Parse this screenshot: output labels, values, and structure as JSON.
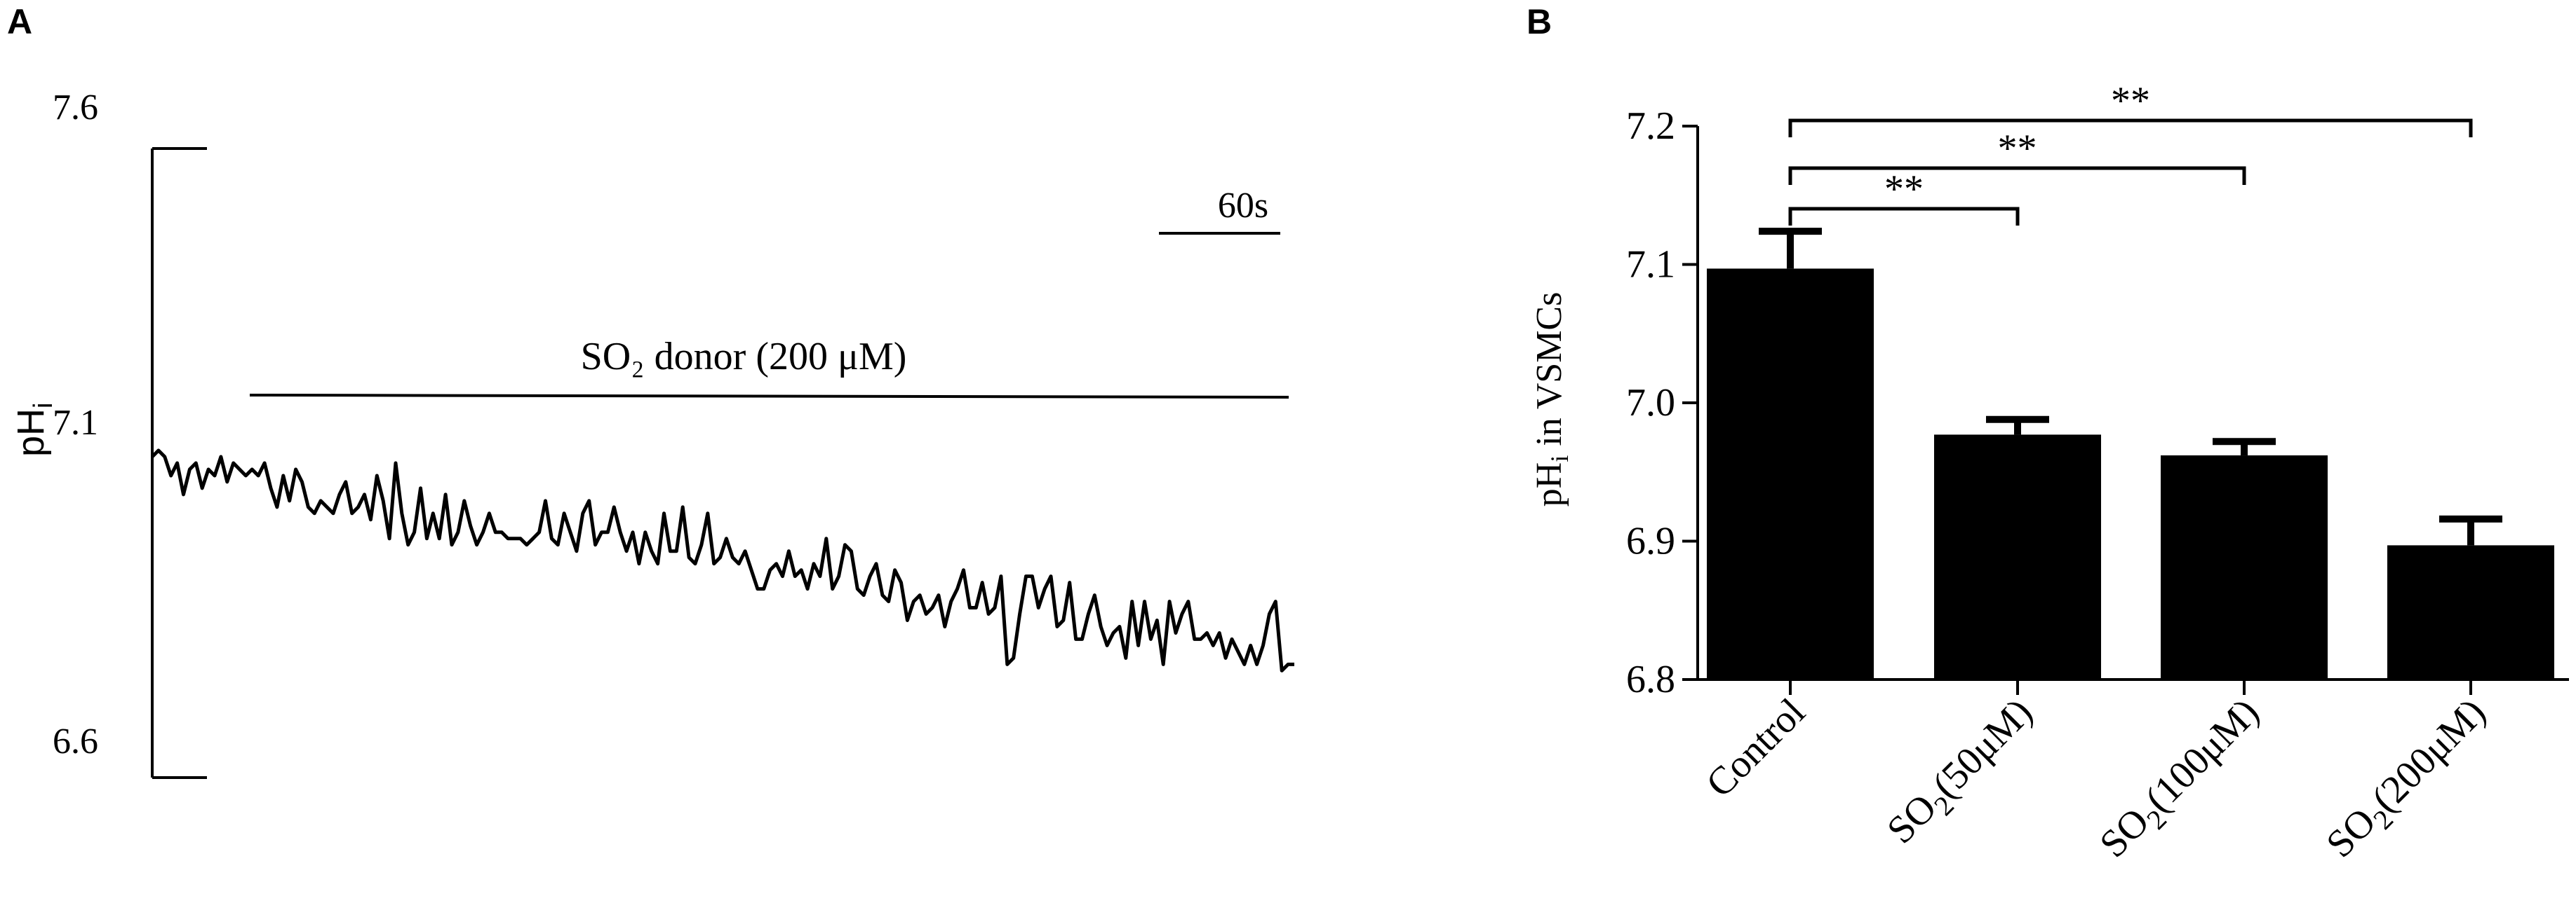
{
  "panels": {
    "a": {
      "letter": "A"
    },
    "b": {
      "letter": "B"
    }
  },
  "chart_data": [
    {
      "type": "line",
      "panel": "A",
      "ylabel": "pH",
      "ylabel_sub": "i",
      "yticks": [
        "7.6",
        "7.1",
        "6.6"
      ],
      "ylim": [
        6.6,
        7.6
      ],
      "scalebar_label": "60s",
      "scalebar_seconds": 60,
      "treatment_label": "SO₂ donor (200 μM)",
      "series": [
        {
          "values": [
            7.11,
            7.12,
            7.11,
            7.08,
            7.1,
            7.05,
            7.09,
            7.1,
            7.06,
            7.09,
            7.08,
            7.11,
            7.07,
            7.1,
            7.09,
            7.08,
            7.09,
            7.08,
            7.1,
            7.06,
            7.03,
            7.08,
            7.04,
            7.09,
            7.07,
            7.03,
            7.02,
            7.04,
            7.03,
            7.02,
            7.05,
            7.07,
            7.02,
            7.03,
            7.05,
            7.01,
            7.08,
            7.04,
            6.98,
            7.1,
            7.02,
            6.97,
            6.99,
            7.06,
            6.98,
            7.02,
            6.98,
            7.05,
            6.97,
            6.99,
            7.04,
            7.0,
            6.97,
            6.99,
            7.02,
            6.99,
            6.99,
            6.98,
            6.98,
            6.98,
            6.97,
            6.98,
            6.99,
            7.04,
            6.98,
            6.97,
            7.02,
            6.99,
            6.96,
            7.02,
            7.04,
            6.97,
            6.99,
            6.99,
            7.03,
            6.99,
            6.96,
            6.99,
            6.94,
            6.99,
            6.96,
            6.94,
            7.02,
            6.96,
            6.96,
            7.03,
            6.95,
            6.94,
            6.97,
            7.02,
            6.94,
            6.95,
            6.98,
            6.95,
            6.94,
            6.96,
            6.93,
            6.9,
            6.9,
            6.93,
            6.94,
            6.92,
            6.96,
            6.92,
            6.93,
            6.9,
            6.94,
            6.92,
            6.98,
            6.9,
            6.92,
            6.97,
            6.96,
            6.9,
            6.89,
            6.92,
            6.94,
            6.89,
            6.88,
            6.93,
            6.91,
            6.85,
            6.88,
            6.89,
            6.86,
            6.87,
            6.89,
            6.84,
            6.88,
            6.9,
            6.93,
            6.87,
            6.87,
            6.91,
            6.86,
            6.87,
            6.92,
            6.78,
            6.79,
            6.86,
            6.92,
            6.92,
            6.87,
            6.9,
            6.92,
            6.84,
            6.85,
            6.91,
            6.82,
            6.82,
            6.86,
            6.89,
            6.84,
            6.81,
            6.83,
            6.84,
            6.79,
            6.88,
            6.81,
            6.88,
            6.82,
            6.85,
            6.78,
            6.88,
            6.83,
            6.86,
            6.88,
            6.82,
            6.82,
            6.83,
            6.81,
            6.83,
            6.79,
            6.82,
            6.8,
            6.78,
            6.81,
            6.78,
            6.81,
            6.86,
            6.88,
            6.77,
            6.78,
            6.78
          ]
        }
      ]
    },
    {
      "type": "bar",
      "panel": "B",
      "categories": [
        {
          "main": "Control",
          "sub": "",
          "rest": ""
        },
        {
          "main": "SO",
          "sub": "2",
          "rest": "(50μM)"
        },
        {
          "main": "SO",
          "sub": "2",
          "rest": "(100μM)"
        },
        {
          "main": "SO",
          "sub": "2",
          "rest": "(200μM)"
        }
      ],
      "values": [
        7.097,
        6.977,
        6.962,
        6.897
      ],
      "errors": [
        0.027,
        0.011,
        0.01,
        0.019
      ],
      "ylabel_pre": "pH",
      "ylabel_sub": "i",
      "ylabel_post": " in VSMCs",
      "ylim": [
        6.8,
        7.2
      ],
      "yticks": [
        6.8,
        6.9,
        7.0,
        7.1,
        7.2
      ],
      "significance": [
        {
          "from": 0,
          "to": 1,
          "label": "**"
        },
        {
          "from": 0,
          "to": 2,
          "label": "**"
        },
        {
          "from": 0,
          "to": 3,
          "label": "**"
        }
      ],
      "bar_color": "#000000"
    }
  ]
}
